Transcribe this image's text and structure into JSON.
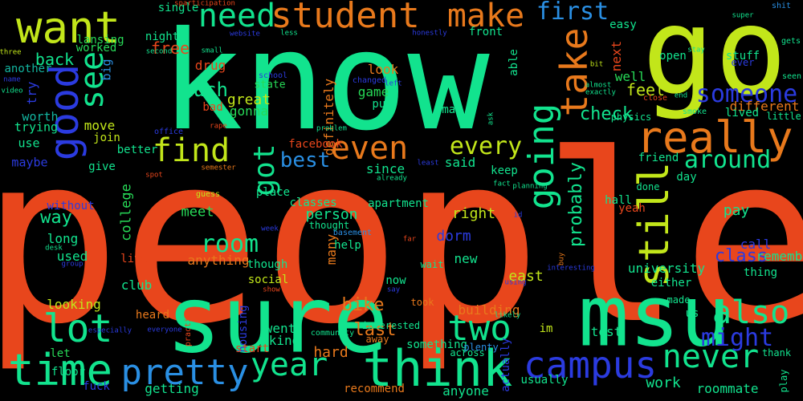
{
  "colors": {
    "background": "#000000",
    "orange_red": "#e8461c",
    "mint": "#12e38e",
    "lime": "#c2e61a",
    "orange": "#e8791c",
    "blue": "#2b3be0",
    "sky": "#2a8fe3",
    "green": "#27d957",
    "teal": "#13b5a0"
  },
  "words": [
    "people",
    "know",
    "go",
    "sure",
    "msu",
    "think",
    "want",
    "student",
    "need",
    "make",
    "really",
    "time",
    "pretty",
    "good",
    "lot",
    "see",
    "find",
    "even",
    "going",
    "take",
    "still",
    "campus",
    "never",
    "two",
    "also",
    "year",
    "got",
    "room",
    "first",
    "someone",
    "might",
    "every",
    "around",
    "best",
    "probably",
    "check",
    "class",
    "much",
    "free",
    "back",
    "worth",
    "trying",
    "use",
    "maybe",
    "way",
    "college",
    "meet",
    "long",
    "used",
    "club",
    "looking",
    "bike",
    "last",
    "dorm",
    "right",
    "person",
    "many",
    "new",
    "game",
    "look",
    "since",
    "said",
    "definitely",
    "great",
    "state",
    "gonna",
    "feel",
    "well",
    "open",
    "next",
    "easy",
    "stuff",
    "single",
    "night",
    "drug",
    "lansing",
    "worked",
    "another",
    "big",
    "try",
    "move",
    "join",
    "better",
    "give",
    "without",
    "let",
    "floor",
    "live",
    "anything",
    "facebook",
    "east",
    "university",
    "work",
    "roommate",
    "building",
    "went",
    "kind",
    "hard",
    "something",
    "anyone",
    "recommend",
    "usually",
    "actually",
    "now",
    "social",
    "though",
    "test",
    "us",
    "call",
    "remember",
    "pay",
    "thing",
    "either",
    "made",
    "day",
    "friend",
    "different",
    "lived",
    "little",
    "done",
    "yeah",
    "hall",
    "im",
    "may",
    "put",
    "able",
    "keep",
    "front",
    "apartment",
    "help",
    "wait",
    "classes",
    "thought",
    "basement",
    "took",
    "interested",
    "plenty",
    "across",
    "community",
    "away",
    "thank",
    "play",
    "getting",
    "heard",
    "practice",
    "housing",
    "start",
    "office",
    "guess",
    "place",
    "sparticipation",
    "website",
    "small",
    "second",
    "three",
    "name",
    "video",
    "school",
    "less",
    "honestly",
    "changed",
    "left",
    "almost",
    "exactly",
    "bit",
    "close",
    "super",
    "shit",
    "gets",
    "seen",
    "ever",
    "physics",
    "smoke",
    "end",
    "stay",
    "bad",
    "rape",
    "spot",
    "semester",
    "planning",
    "fact",
    "id",
    "buy",
    "already",
    "least",
    "problem",
    "ask",
    "far",
    "week",
    "desk",
    "group",
    "show",
    "interesting",
    "using",
    "say",
    "likely",
    "everyone",
    "especially",
    "fuck"
  ]
}
